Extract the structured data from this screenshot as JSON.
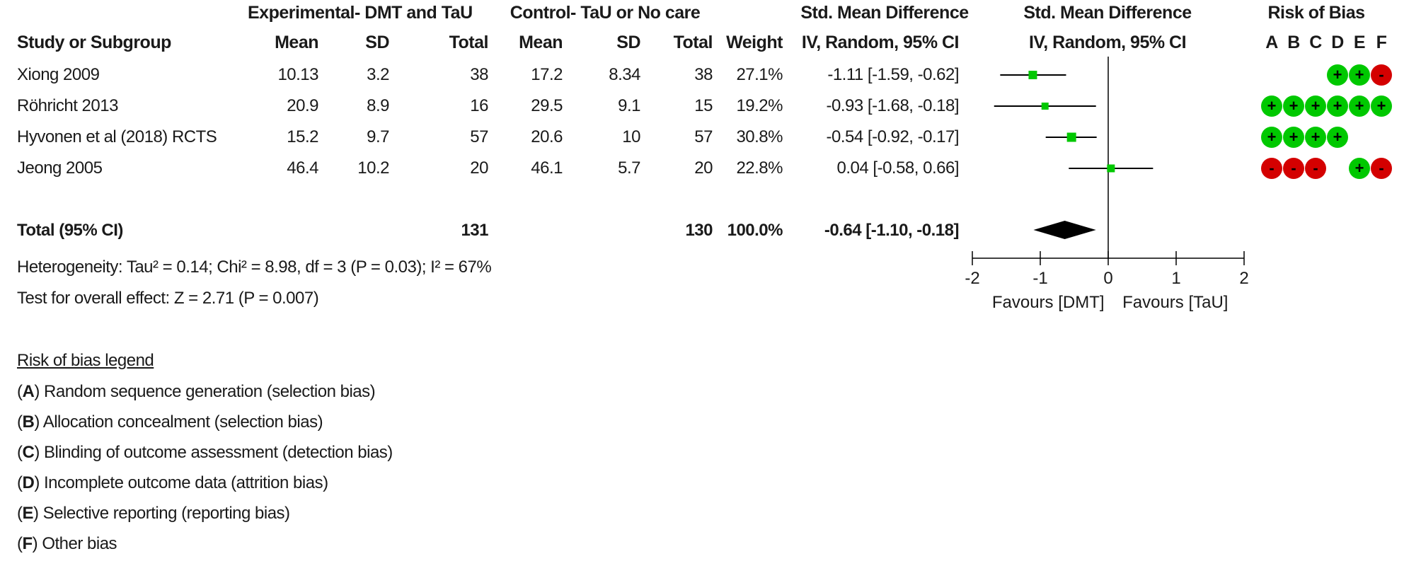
{
  "header": {
    "group_experimental": "Experimental- DMT and TaU",
    "group_control": "Control- TaU or No care",
    "smd_header_text": "Std. Mean Difference",
    "smd_header_plot": "Std. Mean Difference",
    "risk_of_bias": "Risk of Bias",
    "study_col": "Study or Subgroup",
    "mean": "Mean",
    "sd": "SD",
    "total": "Total",
    "mean_c": "Mean",
    "sd_c": "SD",
    "total_c": "Total",
    "weight": "Weight",
    "method_text": "IV, Random, 95% CI",
    "method_plot": "IV, Random, 95% CI",
    "rob_letters": [
      "A",
      "B",
      "C",
      "D",
      "E",
      "F"
    ]
  },
  "studies": [
    {
      "name": "Xiong 2009",
      "exp_mean": "10.13",
      "exp_sd": "3.2",
      "exp_total": "38",
      "ctl_mean": "17.2",
      "ctl_sd": "8.34",
      "ctl_total": "38",
      "weight": "27.1%",
      "ci_text": "-1.11 [-1.59, -0.62]",
      "rob": [
        null,
        null,
        null,
        "+",
        "+",
        "-"
      ]
    },
    {
      "name": "Röhricht 2013",
      "exp_mean": "20.9",
      "exp_sd": "8.9",
      "exp_total": "16",
      "ctl_mean": "29.5",
      "ctl_sd": "9.1",
      "ctl_total": "15",
      "weight": "19.2%",
      "ci_text": "-0.93 [-1.68, -0.18]",
      "rob": [
        "+",
        "+",
        "+",
        "+",
        "+",
        "+"
      ]
    },
    {
      "name": "Hyvonen et al (2018) RCTS",
      "exp_mean": "15.2",
      "exp_sd": "9.7",
      "exp_total": "57",
      "ctl_mean": "20.6",
      "ctl_sd": "10",
      "ctl_total": "57",
      "weight": "30.8%",
      "ci_text": "-0.54 [-0.92, -0.17]",
      "rob": [
        "+",
        "+",
        "+",
        "+",
        null,
        null
      ]
    },
    {
      "name": "Jeong 2005",
      "exp_mean": "46.4",
      "exp_sd": "10.2",
      "exp_total": "20",
      "ctl_mean": "46.1",
      "ctl_sd": "5.7",
      "ctl_total": "20",
      "weight": "22.8%",
      "ci_text": "0.04 [-0.58, 0.66]",
      "rob": [
        "-",
        "-",
        "-",
        null,
        "+",
        "-"
      ]
    }
  ],
  "total": {
    "label": "Total (95% CI)",
    "exp_total": "131",
    "ctl_total": "130",
    "weight": "100.0%",
    "ci_text": "-0.64 [-1.10, -0.18]"
  },
  "heterogeneity": "Heterogeneity: Tau² = 0.14; Chi² = 8.98, df = 3 (P = 0.03); I² = 67%",
  "overall_effect": "Test for overall effect: Z = 2.71 (P = 0.007)",
  "legend": {
    "title": "Risk of bias legend",
    "items": [
      {
        "key": "A",
        "text": " Random sequence generation (selection bias)"
      },
      {
        "key": "B",
        "text": " Allocation concealment (selection bias)"
      },
      {
        "key": "C",
        "text": " Blinding of outcome assessment (detection bias)"
      },
      {
        "key": "D",
        "text": " Incomplete outcome data (attrition bias)"
      },
      {
        "key": "E",
        "text": " Selective reporting (reporting bias)"
      },
      {
        "key": "F",
        "text": " Other bias"
      }
    ]
  },
  "colors": {
    "square": "#00c800",
    "low_risk": "#00c800",
    "high_risk": "#d40000",
    "diamond": "#000000"
  },
  "chart_data": {
    "type": "forest",
    "xlim": [
      -2,
      2
    ],
    "xticks": [
      "-2",
      "-1",
      "0",
      "1",
      "2"
    ],
    "xlabel_left": "Favours [DMT]",
    "xlabel_right": "Favours [TaU]",
    "points": [
      {
        "study": "Xiong 2009",
        "est": -1.11,
        "lo": -1.59,
        "hi": -0.62
      },
      {
        "study": "Röhricht 2013",
        "est": -0.93,
        "lo": -1.68,
        "hi": -0.18
      },
      {
        "study": "Hyvonen et al (2018) RCTS",
        "est": -0.54,
        "lo": -0.92,
        "hi": -0.17
      },
      {
        "study": "Jeong 2005",
        "est": 0.04,
        "lo": -0.58,
        "hi": 0.66
      }
    ],
    "pooled": {
      "est": -0.64,
      "lo": -1.1,
      "hi": -0.18
    }
  }
}
